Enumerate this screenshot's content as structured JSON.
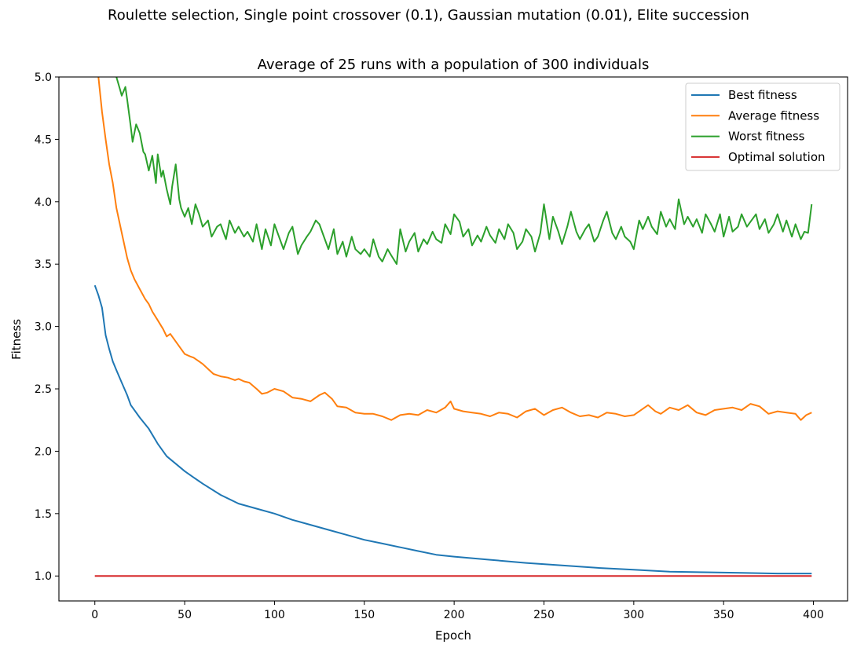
{
  "figure": {
    "suptitle": "Roulette selection, Single point crossover (0.1), Gaussian mutation (0.01), Elite succession"
  },
  "chart_data": {
    "type": "line",
    "title": "Average of 25 runs with a population of 300 individuals",
    "xlabel": "Epoch",
    "ylabel": "Fitness",
    "xlim": [
      -20,
      419
    ],
    "ylim": [
      0.8,
      5.0
    ],
    "xticks": [
      0,
      50,
      100,
      150,
      200,
      250,
      300,
      350,
      400
    ],
    "yticks": [
      1.0,
      1.5,
      2.0,
      2.5,
      3.0,
      3.5,
      4.0,
      4.5,
      5.0
    ],
    "ytick_labels": [
      "1.0",
      "1.5",
      "2.0",
      "2.5",
      "3.0",
      "3.5",
      "4.0",
      "4.5",
      "5.0"
    ],
    "grid": false,
    "legend_position": "top-right",
    "series": [
      {
        "name": "Best fitness",
        "color": "#1f77b4",
        "x": [
          0,
          2,
          4,
          6,
          8,
          10,
          12,
          15,
          18,
          20,
          25,
          30,
          35,
          40,
          45,
          50,
          55,
          60,
          70,
          80,
          90,
          100,
          110,
          120,
          130,
          140,
          150,
          160,
          170,
          180,
          190,
          200,
          220,
          240,
          260,
          280,
          300,
          320,
          340,
          360,
          380,
          399
        ],
        "y": [
          3.33,
          3.25,
          3.15,
          2.93,
          2.82,
          2.72,
          2.65,
          2.55,
          2.45,
          2.37,
          2.27,
          2.18,
          2.06,
          1.96,
          1.9,
          1.84,
          1.79,
          1.74,
          1.65,
          1.58,
          1.54,
          1.5,
          1.45,
          1.41,
          1.37,
          1.33,
          1.29,
          1.26,
          1.23,
          1.2,
          1.17,
          1.155,
          1.13,
          1.105,
          1.085,
          1.065,
          1.05,
          1.035,
          1.03,
          1.025,
          1.02,
          1.02
        ]
      },
      {
        "name": "Average fitness",
        "color": "#ff7f0e",
        "x": [
          2,
          4,
          6,
          8,
          10,
          12,
          15,
          18,
          20,
          22,
          25,
          28,
          30,
          32,
          35,
          38,
          40,
          42,
          45,
          48,
          50,
          53,
          55,
          58,
          60,
          63,
          66,
          70,
          74,
          78,
          80,
          83,
          86,
          90,
          93,
          96,
          100,
          105,
          110,
          115,
          120,
          125,
          128,
          132,
          135,
          140,
          145,
          150,
          155,
          160,
          165,
          170,
          175,
          180,
          185,
          190,
          195,
          198,
          200,
          205,
          210,
          215,
          220,
          225,
          230,
          235,
          240,
          245,
          250,
          255,
          260,
          265,
          270,
          275,
          280,
          285,
          290,
          295,
          300,
          305,
          308,
          312,
          315,
          320,
          325,
          330,
          335,
          340,
          345,
          350,
          355,
          360,
          365,
          370,
          375,
          380,
          385,
          390,
          393,
          396,
          399
        ],
        "y": [
          5.0,
          4.72,
          4.5,
          4.3,
          4.15,
          3.95,
          3.75,
          3.55,
          3.45,
          3.38,
          3.3,
          3.22,
          3.18,
          3.12,
          3.05,
          2.98,
          2.92,
          2.94,
          2.88,
          2.82,
          2.78,
          2.76,
          2.75,
          2.72,
          2.7,
          2.66,
          2.62,
          2.6,
          2.59,
          2.57,
          2.58,
          2.56,
          2.55,
          2.5,
          2.46,
          2.47,
          2.5,
          2.48,
          2.43,
          2.42,
          2.4,
          2.45,
          2.47,
          2.42,
          2.36,
          2.35,
          2.31,
          2.3,
          2.3,
          2.28,
          2.25,
          2.29,
          2.3,
          2.29,
          2.33,
          2.31,
          2.35,
          2.4,
          2.34,
          2.32,
          2.31,
          2.3,
          2.28,
          2.31,
          2.3,
          2.27,
          2.32,
          2.34,
          2.29,
          2.33,
          2.35,
          2.31,
          2.28,
          2.29,
          2.27,
          2.31,
          2.3,
          2.28,
          2.29,
          2.34,
          2.37,
          2.32,
          2.3,
          2.35,
          2.33,
          2.37,
          2.31,
          2.29,
          2.33,
          2.34,
          2.35,
          2.33,
          2.38,
          2.36,
          2.3,
          2.32,
          2.31,
          2.3,
          2.25,
          2.29,
          2.31
        ]
      },
      {
        "name": "Worst fitness",
        "color": "#2ca02c",
        "x": [
          12,
          14,
          15,
          17,
          18,
          20,
          21,
          23,
          25,
          27,
          28,
          30,
          32,
          34,
          35,
          37,
          38,
          40,
          42,
          43,
          45,
          47,
          48,
          50,
          52,
          54,
          56,
          58,
          60,
          63,
          65,
          68,
          70,
          73,
          75,
          78,
          80,
          83,
          85,
          88,
          90,
          93,
          95,
          98,
          100,
          103,
          105,
          108,
          110,
          113,
          115,
          118,
          120,
          123,
          125,
          128,
          130,
          133,
          135,
          138,
          140,
          143,
          145,
          148,
          150,
          153,
          155,
          158,
          160,
          163,
          165,
          168,
          170,
          173,
          175,
          178,
          180,
          183,
          185,
          188,
          190,
          193,
          195,
          198,
          200,
          203,
          205,
          208,
          210,
          213,
          215,
          218,
          220,
          223,
          225,
          228,
          230,
          233,
          235,
          238,
          240,
          243,
          245,
          248,
          250,
          253,
          255,
          258,
          260,
          263,
          265,
          268,
          270,
          273,
          275,
          278,
          280,
          283,
          285,
          288,
          290,
          293,
          295,
          298,
          300,
          303,
          305,
          308,
          310,
          313,
          315,
          318,
          320,
          323,
          325,
          328,
          330,
          333,
          335,
          338,
          340,
          343,
          345,
          348,
          350,
          353,
          355,
          358,
          360,
          363,
          365,
          368,
          370,
          373,
          375,
          378,
          380,
          383,
          385,
          388,
          390,
          393,
          395,
          397,
          399
        ],
        "y": [
          5.0,
          4.9,
          4.85,
          4.92,
          4.82,
          4.6,
          4.48,
          4.62,
          4.55,
          4.4,
          4.38,
          4.25,
          4.37,
          4.15,
          4.38,
          4.2,
          4.25,
          4.1,
          3.98,
          4.12,
          4.3,
          4.02,
          3.95,
          3.88,
          3.95,
          3.82,
          3.98,
          3.9,
          3.8,
          3.85,
          3.72,
          3.8,
          3.82,
          3.7,
          3.85,
          3.75,
          3.8,
          3.72,
          3.76,
          3.68,
          3.82,
          3.62,
          3.78,
          3.65,
          3.82,
          3.7,
          3.62,
          3.75,
          3.8,
          3.58,
          3.65,
          3.72,
          3.76,
          3.85,
          3.82,
          3.7,
          3.62,
          3.78,
          3.58,
          3.68,
          3.56,
          3.72,
          3.62,
          3.58,
          3.62,
          3.56,
          3.7,
          3.56,
          3.52,
          3.62,
          3.57,
          3.5,
          3.78,
          3.6,
          3.68,
          3.75,
          3.6,
          3.7,
          3.66,
          3.76,
          3.7,
          3.67,
          3.82,
          3.74,
          3.9,
          3.84,
          3.72,
          3.78,
          3.65,
          3.73,
          3.68,
          3.8,
          3.73,
          3.67,
          3.78,
          3.7,
          3.82,
          3.75,
          3.62,
          3.68,
          3.78,
          3.72,
          3.6,
          3.75,
          3.98,
          3.7,
          3.88,
          3.76,
          3.66,
          3.8,
          3.92,
          3.76,
          3.7,
          3.78,
          3.82,
          3.68,
          3.72,
          3.85,
          3.92,
          3.75,
          3.7,
          3.8,
          3.72,
          3.68,
          3.62,
          3.85,
          3.78,
          3.88,
          3.8,
          3.74,
          3.92,
          3.8,
          3.86,
          3.78,
          4.02,
          3.82,
          3.88,
          3.8,
          3.86,
          3.75,
          3.9,
          3.82,
          3.76,
          3.9,
          3.72,
          3.88,
          3.76,
          3.8,
          3.9,
          3.8,
          3.84,
          3.9,
          3.78,
          3.86,
          3.75,
          3.82,
          3.9,
          3.76,
          3.85,
          3.72,
          3.82,
          3.7,
          3.76,
          3.75,
          3.98
        ]
      },
      {
        "name": "Optimal solution",
        "color": "#d62728",
        "x": [
          0,
          399
        ],
        "y": [
          1.0,
          1.0
        ]
      }
    ]
  }
}
